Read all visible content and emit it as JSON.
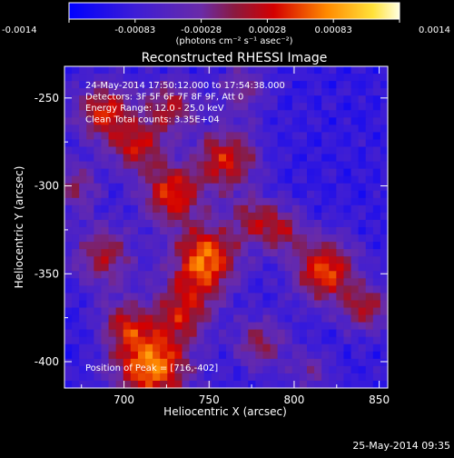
{
  "chart_data": {
    "type": "heatmap",
    "title": "Reconstructed RHESSI Image",
    "xlabel": "Heliocentric X (arcsec)",
    "ylabel": "Heliocentric Y (arcsec)",
    "xlim": [
      665,
      855
    ],
    "ylim": [
      -415,
      -232
    ],
    "xticks": [
      700,
      750,
      800,
      850
    ],
    "yticks": [
      -250,
      -300,
      -350,
      -400
    ],
    "colorbar": {
      "range": [
        -0.0014,
        0.0014
      ],
      "ticks": [
        "-0.0014",
        "-0.00083",
        "-0.00028",
        "0.00028",
        "0.00083",
        "0.0014"
      ],
      "unit_label": "(photons cm⁻² s⁻¹ asec⁻²)",
      "colormap": "blue-purple-red-orange-yellow-white"
    },
    "annotations": [
      "24-May-2014 17:50:12.000 to 17:54:38.000",
      "Detectors: 3F 5F 6F 7F 8F 9F, Att 0",
      "Energy Range: 12.0 - 25.0 keV",
      "Clean     Total counts: 3.35E+04"
    ],
    "peak_label": "Position of Peak = [716,-402]",
    "peak": {
      "x": 716,
      "y": -402
    },
    "grid": false,
    "blobs": [
      {
        "x": 716,
        "y": -402,
        "amp": 1.0,
        "w": 16
      },
      {
        "x": 748,
        "y": -342,
        "amp": 0.95,
        "w": 14
      },
      {
        "x": 728,
        "y": -305,
        "amp": 0.8,
        "w": 12
      },
      {
        "x": 760,
        "y": -285,
        "amp": 0.75,
        "w": 13
      },
      {
        "x": 688,
        "y": -258,
        "amp": 0.75,
        "w": 12
      },
      {
        "x": 708,
        "y": -278,
        "amp": 0.65,
        "w": 11
      },
      {
        "x": 818,
        "y": -348,
        "amp": 0.85,
        "w": 13
      },
      {
        "x": 842,
        "y": -370,
        "amp": 0.6,
        "w": 10
      },
      {
        "x": 728,
        "y": -255,
        "amp": 0.6,
        "w": 11
      },
      {
        "x": 792,
        "y": -325,
        "amp": 0.55,
        "w": 10
      },
      {
        "x": 688,
        "y": -340,
        "amp": 0.6,
        "w": 13
      },
      {
        "x": 735,
        "y": -370,
        "amp": 0.6,
        "w": 12
      },
      {
        "x": 780,
        "y": -390,
        "amp": 0.5,
        "w": 11
      },
      {
        "x": 672,
        "y": -300,
        "amp": 0.45,
        "w": 10
      },
      {
        "x": 770,
        "y": -245,
        "amp": 0.45,
        "w": 10
      },
      {
        "x": 810,
        "y": -405,
        "amp": 0.35,
        "w": 9
      },
      {
        "x": 700,
        "y": -378,
        "amp": 0.5,
        "w": 10
      },
      {
        "x": 775,
        "y": -318,
        "amp": 0.45,
        "w": 9
      }
    ],
    "background_level": -0.25
  },
  "footer": {
    "timestamp": "25-May-2014 09:35"
  }
}
